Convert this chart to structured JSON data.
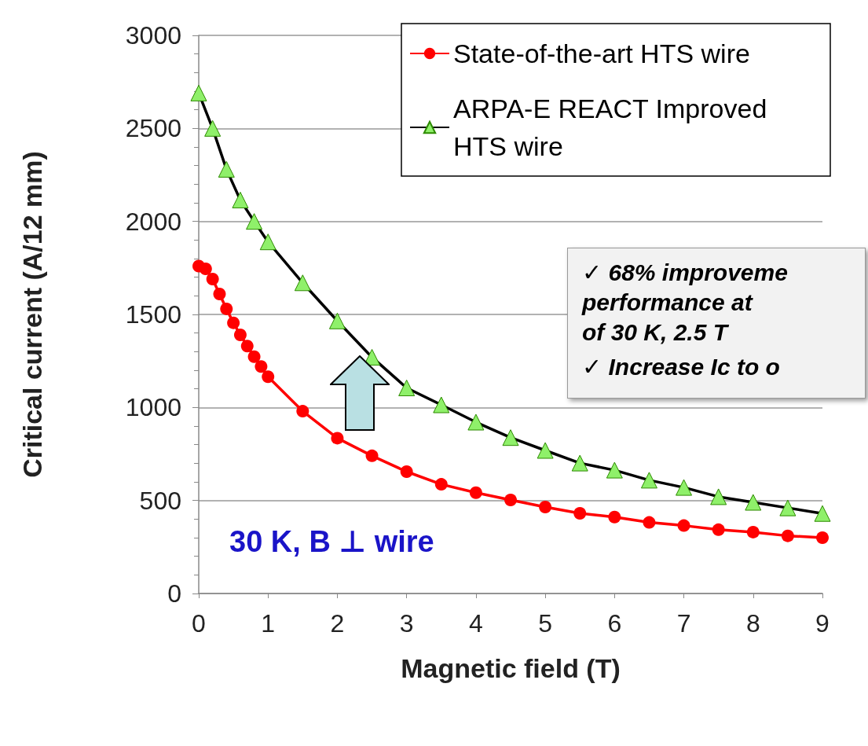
{
  "chart_data": {
    "type": "line",
    "xlabel": "Magnetic field (T)",
    "ylabel": "Critical current (A/12 mm)",
    "xlim": [
      0,
      9
    ],
    "xticks": [
      0,
      1,
      2,
      3,
      4,
      5,
      6,
      7,
      8,
      9
    ],
    "ylim": [
      0,
      3000
    ],
    "yticks": [
      0,
      500,
      1000,
      1500,
      2000,
      2500,
      3000
    ],
    "grid": "y",
    "legend": "top right",
    "line_style": "solid",
    "series": [
      {
        "name": "State-of-the-art HTS wire",
        "color": "#ff0000",
        "marker": "circle",
        "x": [
          0,
          0.1,
          0.2,
          0.3,
          0.4,
          0.5,
          0.6,
          0.7,
          0.8,
          0.9,
          1.0,
          1.5,
          2.0,
          2.5,
          3.0,
          3.5,
          4.0,
          4.5,
          5.0,
          5.5,
          6.0,
          6.5,
          7.0,
          7.5,
          8.0,
          8.5,
          9.0
        ],
        "values": [
          1760,
          1745,
          1690,
          1610,
          1530,
          1455,
          1390,
          1330,
          1273,
          1220,
          1165,
          980,
          835,
          740,
          655,
          587,
          542,
          503,
          465,
          431,
          411,
          382,
          365,
          343,
          330,
          310,
          300
        ]
      },
      {
        "name": "ARPA-E REACT Improved HTS wire",
        "color": "#000000",
        "marker": "triangle",
        "x": [
          0,
          0.2,
          0.4,
          0.6,
          0.8,
          1.0,
          1.5,
          2.0,
          2.5,
          3.0,
          3.5,
          4.0,
          4.5,
          5.0,
          5.5,
          6.0,
          6.5,
          7.0,
          7.5,
          8.0,
          8.5,
          9.0
        ],
        "values": [
          2690,
          2500,
          2280,
          2115,
          2000,
          1890,
          1670,
          1465,
          1270,
          1105,
          1014,
          921,
          838,
          769,
          701,
          663,
          609,
          570,
          520,
          490,
          460,
          430
        ]
      }
    ],
    "annotations": [
      "30 K, B ⊥ wire",
      "✓ 68% improveme\nperformance at\nof 30 K, 2.5 T",
      "✓ Increase Ic to o"
    ]
  }
}
